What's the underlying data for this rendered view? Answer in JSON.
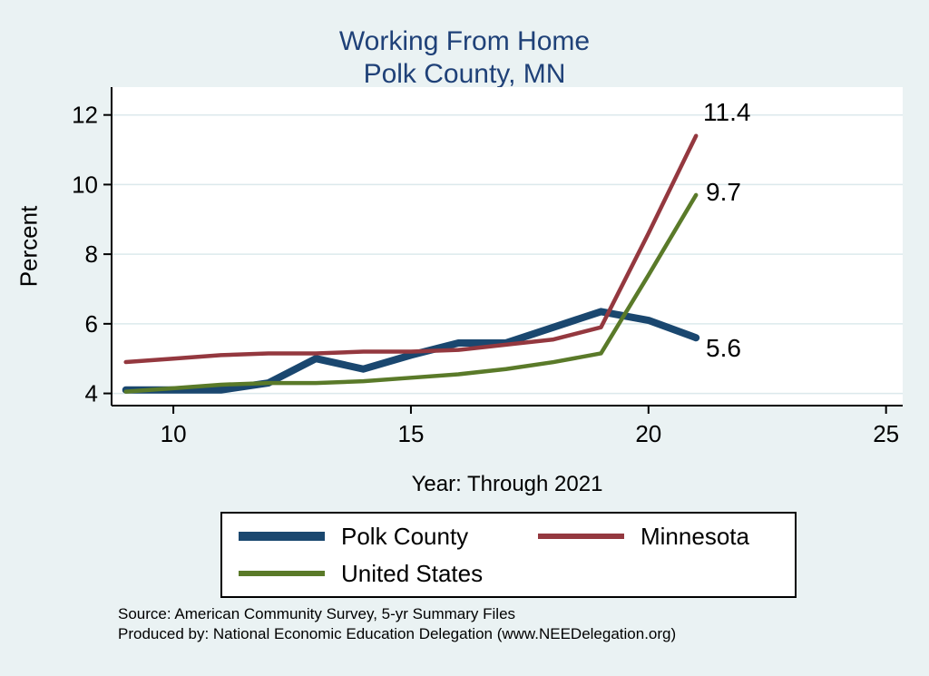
{
  "title": {
    "line1": "Working From Home",
    "line2": "Polk County, MN",
    "color": "#1f4178"
  },
  "chart_data": {
    "type": "line",
    "x": [
      9,
      10,
      11,
      12,
      13,
      14,
      15,
      16,
      17,
      18,
      19,
      20,
      21
    ],
    "series": [
      {
        "name": "Polk County",
        "color": "#1a476f",
        "width": 8,
        "values": [
          4.1,
          4.1,
          4.1,
          4.3,
          5.0,
          4.7,
          5.1,
          5.45,
          5.45,
          5.9,
          6.35,
          6.1,
          5.6
        ],
        "end_label": "5.6"
      },
      {
        "name": "Minnesota",
        "color": "#94383f",
        "width": 4.5,
        "values": [
          4.9,
          5.0,
          5.1,
          5.15,
          5.15,
          5.2,
          5.2,
          5.25,
          5.4,
          5.55,
          5.9,
          8.6,
          11.4
        ],
        "end_label": "11.4"
      },
      {
        "name": "United States",
        "color": "#5a7a29",
        "width": 4.5,
        "values": [
          4.05,
          4.15,
          4.25,
          4.3,
          4.3,
          4.35,
          4.45,
          4.55,
          4.7,
          4.9,
          5.15,
          7.4,
          9.7
        ],
        "end_label": "9.7"
      }
    ],
    "title": "Working From Home Polk County, MN",
    "xlabel": "Year: Through 2021",
    "ylabel": "Percent",
    "xticks": [
      10,
      15,
      20,
      25
    ],
    "yticks": [
      4,
      6,
      8,
      10,
      12
    ],
    "xlim": [
      8.7,
      25.35
    ],
    "ylim": [
      3.65,
      12.8
    ],
    "grid": true,
    "legend_position": "bottom"
  },
  "footer": {
    "line1": "Source: American Community Survey, 5-yr Summary Files",
    "line2": "Produced by: National Economic Education Delegation (www.NEEDelegation.org)"
  }
}
